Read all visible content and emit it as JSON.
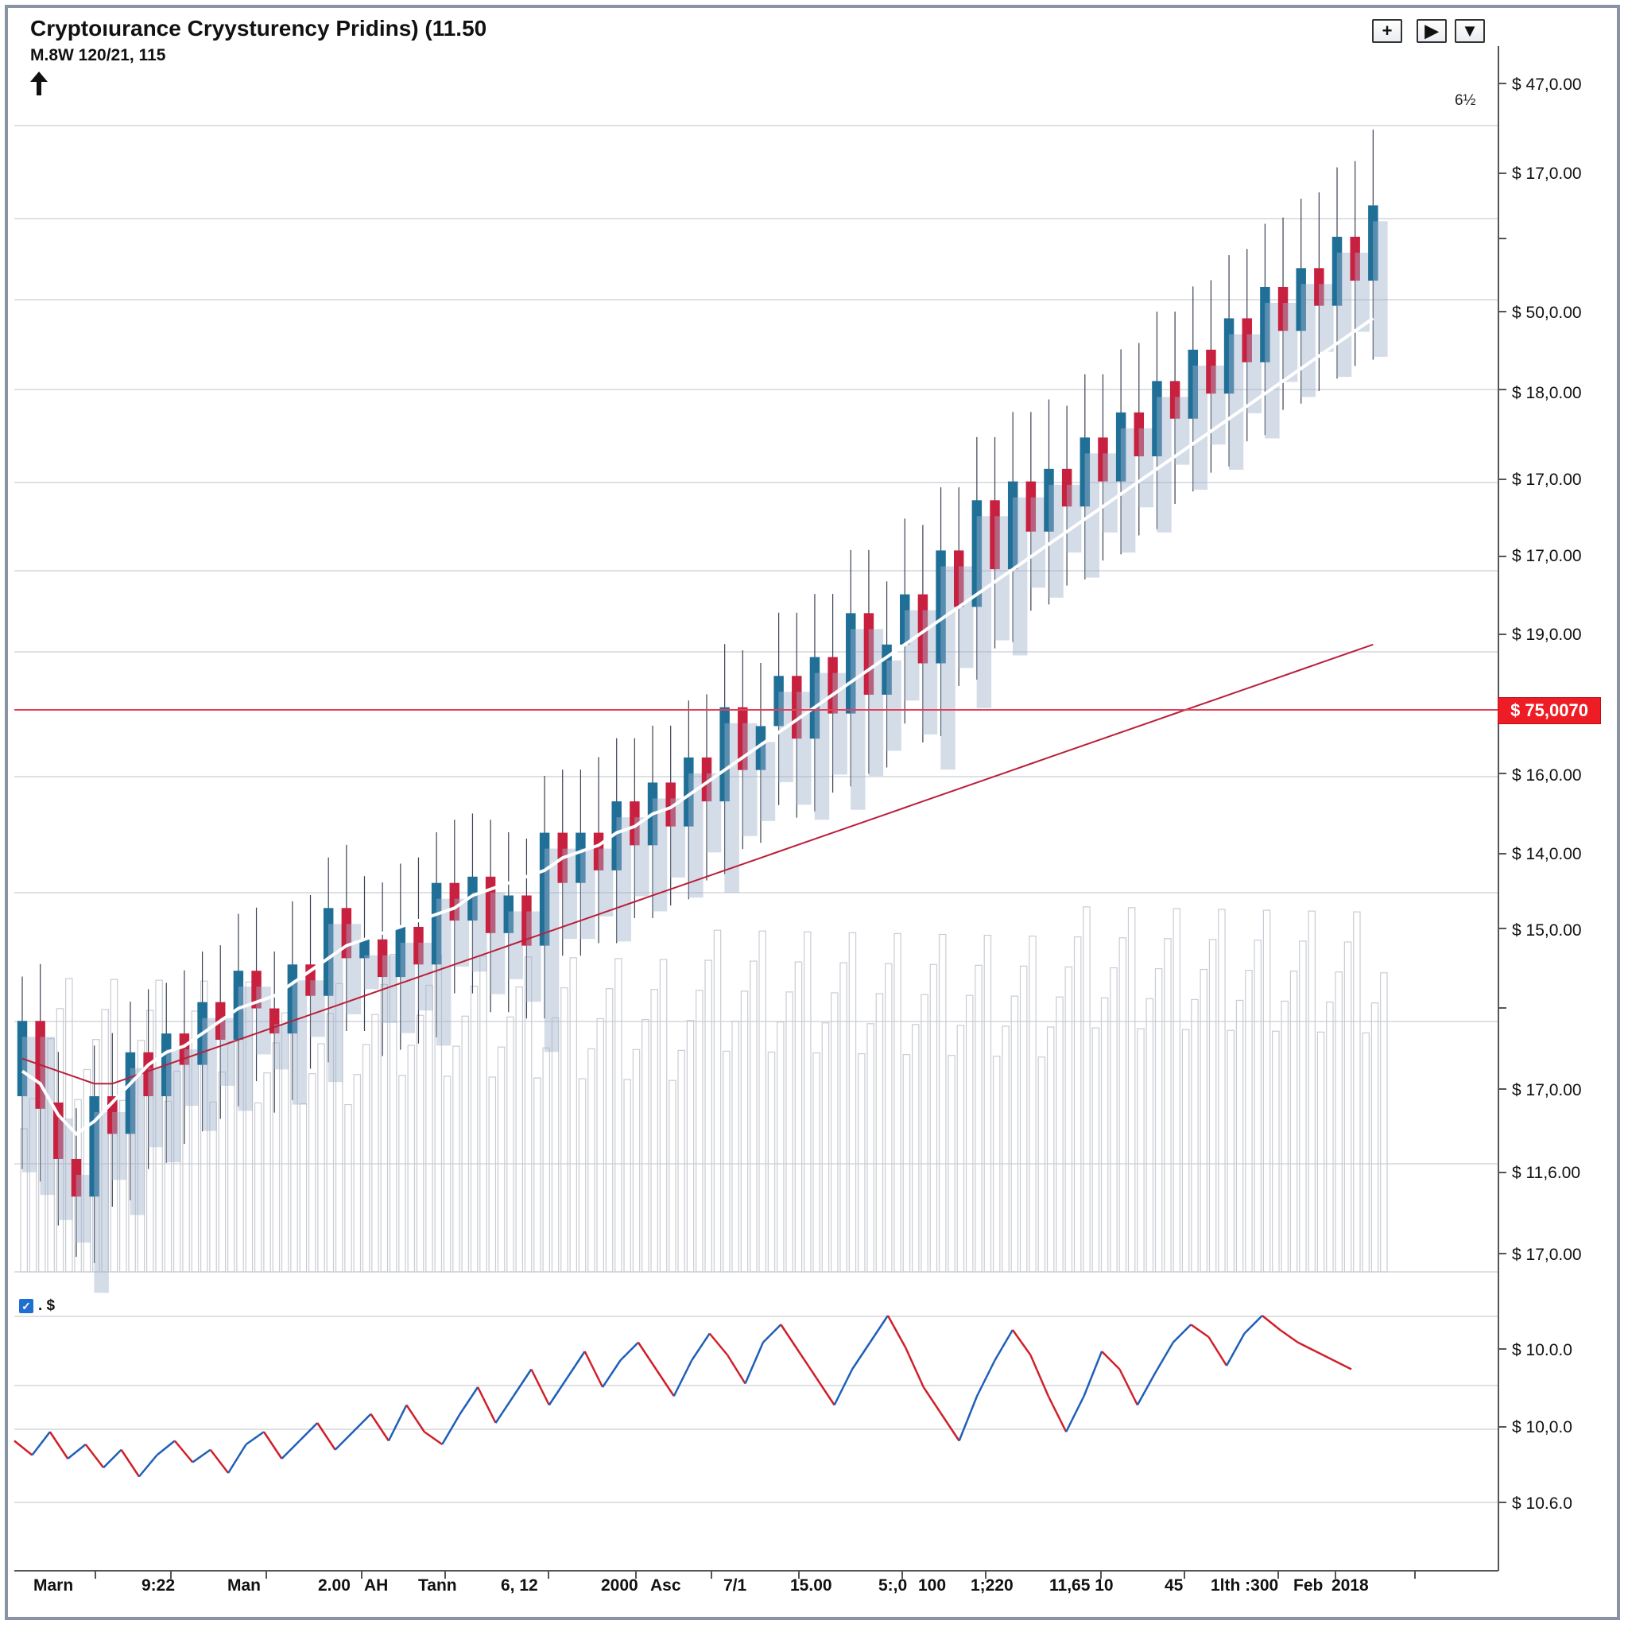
{
  "header": {
    "title": "Cryptoıurance Cryysturency Pridins) (11.50",
    "subtitle": "M.8W 120/21, 115",
    "percent_label": "6½"
  },
  "controls": [
    {
      "name": "zoom-in-button",
      "label": "+"
    },
    {
      "name": "play-button",
      "label": "▶"
    },
    {
      "name": "dropdown-button",
      "label": "▼"
    }
  ],
  "price_tag": "$ 75,0070",
  "legend": {
    "label": ". $"
  },
  "colors": {
    "up": "#1f6f97",
    "down": "#c8203f",
    "ma_white": "#ffffff",
    "ma_red": "#b8203a",
    "price_line": "#e0405a",
    "indicator_up": "#1f5fb8",
    "indicator_down": "#d0202a"
  },
  "chart_data": {
    "type": "candlestick",
    "title": "Cryptoıurance Cryysturency Pridins) (11.50",
    "y_tick_labels": [
      "$ 47,0.00",
      "$ 17,0.00",
      "$ 50,0.00",
      "$ 18,0.00",
      "$ 17,0.00",
      "$ 17,0.00",
      "$ 19,0.00",
      "$ 16,0.00",
      "$ 14,0.00",
      "$ 15,0.00",
      "$ 17,0.00",
      "$ 11,6.00",
      "$ 17,0.00"
    ],
    "indicator_tick_labels": [
      "$ 10.0.0",
      "$ 10,0.0",
      "$ 10.6.0"
    ],
    "x_tick_labels": [
      "Marn",
      "9:22",
      "Man",
      "2.00",
      "AH",
      "Tann",
      "6, 12",
      "2000",
      "Asc",
      "7/1",
      "15.00",
      "5:,0",
      "100",
      "1;220",
      "11,65 10",
      "45",
      "1lth :300",
      "Feb",
      "2018"
    ],
    "ohlc": [
      [
        0.58,
        0.7,
        0.54,
        0.72
      ],
      [
        0.7,
        0.56,
        0.52,
        0.74
      ],
      [
        0.57,
        0.48,
        0.45,
        0.6
      ],
      [
        0.48,
        0.42,
        0.4,
        0.51
      ],
      [
        0.42,
        0.58,
        0.39,
        0.61
      ],
      [
        0.58,
        0.52,
        0.48,
        0.63
      ],
      [
        0.52,
        0.65,
        0.49,
        0.68
      ],
      [
        0.65,
        0.58,
        0.54,
        0.7
      ],
      [
        0.58,
        0.68,
        0.55,
        0.71
      ],
      [
        0.68,
        0.63,
        0.58,
        0.73
      ],
      [
        0.63,
        0.73,
        0.6,
        0.76
      ],
      [
        0.73,
        0.67,
        0.62,
        0.77
      ],
      [
        0.67,
        0.78,
        0.64,
        0.82
      ],
      [
        0.78,
        0.72,
        0.68,
        0.83
      ],
      [
        0.72,
        0.68,
        0.63,
        0.76
      ],
      [
        0.68,
        0.79,
        0.65,
        0.84
      ],
      [
        0.79,
        0.74,
        0.7,
        0.85
      ],
      [
        0.74,
        0.88,
        0.71,
        0.91
      ],
      [
        0.88,
        0.8,
        0.76,
        0.93
      ],
      [
        0.8,
        0.83,
        0.76,
        0.88
      ],
      [
        0.83,
        0.77,
        0.72,
        0.87
      ],
      [
        0.77,
        0.85,
        0.73,
        0.9
      ],
      [
        0.85,
        0.79,
        0.74,
        0.91
      ],
      [
        0.79,
        0.92,
        0.75,
        0.95
      ],
      [
        0.92,
        0.86,
        0.82,
        0.97
      ],
      [
        0.86,
        0.93,
        0.82,
        0.98
      ],
      [
        0.93,
        0.84,
        0.79,
        0.97
      ],
      [
        0.84,
        0.9,
        0.79,
        0.95
      ],
      [
        0.9,
        0.82,
        0.78,
        0.94
      ],
      [
        0.82,
        1.0,
        0.78,
        1.04
      ],
      [
        1.0,
        0.92,
        0.88,
        1.05
      ],
      [
        0.92,
        1.0,
        0.88,
        1.05
      ],
      [
        1.0,
        0.94,
        0.9,
        1.07
      ],
      [
        0.94,
        1.05,
        0.9,
        1.1
      ],
      [
        1.05,
        0.98,
        0.94,
        1.1
      ],
      [
        0.98,
        1.08,
        0.94,
        1.12
      ],
      [
        1.08,
        1.01,
        0.96,
        1.12
      ],
      [
        1.01,
        1.12,
        0.97,
        1.16
      ],
      [
        1.12,
        1.05,
        1.0,
        1.17
      ],
      [
        1.05,
        1.2,
        1.01,
        1.25
      ],
      [
        1.2,
        1.1,
        1.05,
        1.24
      ],
      [
        1.1,
        1.17,
        1.06,
        1.22
      ],
      [
        1.17,
        1.25,
        1.12,
        1.3
      ],
      [
        1.25,
        1.15,
        1.1,
        1.3
      ],
      [
        1.15,
        1.28,
        1.11,
        1.33
      ],
      [
        1.28,
        1.19,
        1.14,
        1.33
      ],
      [
        1.19,
        1.35,
        1.15,
        1.4
      ],
      [
        1.35,
        1.22,
        1.17,
        1.4
      ],
      [
        1.22,
        1.3,
        1.18,
        1.35
      ],
      [
        1.3,
        1.38,
        1.25,
        1.45
      ],
      [
        1.38,
        1.27,
        1.22,
        1.44
      ],
      [
        1.27,
        1.45,
        1.23,
        1.5
      ],
      [
        1.45,
        1.36,
        1.31,
        1.5
      ],
      [
        1.36,
        1.53,
        1.32,
        1.58
      ],
      [
        1.53,
        1.42,
        1.37,
        1.58
      ],
      [
        1.42,
        1.56,
        1.38,
        1.62
      ],
      [
        1.56,
        1.48,
        1.43,
        1.62
      ],
      [
        1.48,
        1.58,
        1.44,
        1.64
      ],
      [
        1.58,
        1.52,
        1.47,
        1.63
      ],
      [
        1.52,
        1.63,
        1.48,
        1.68
      ],
      [
        1.63,
        1.56,
        1.51,
        1.68
      ],
      [
        1.56,
        1.67,
        1.52,
        1.72
      ],
      [
        1.67,
        1.6,
        1.55,
        1.73
      ],
      [
        1.6,
        1.72,
        1.56,
        1.78
      ],
      [
        1.72,
        1.66,
        1.6,
        1.78
      ],
      [
        1.66,
        1.77,
        1.62,
        1.82
      ],
      [
        1.77,
        1.7,
        1.65,
        1.83
      ],
      [
        1.7,
        1.82,
        1.66,
        1.87
      ],
      [
        1.82,
        1.75,
        1.7,
        1.88
      ],
      [
        1.75,
        1.87,
        1.71,
        1.92
      ],
      [
        1.87,
        1.8,
        1.75,
        1.93
      ],
      [
        1.8,
        1.9,
        1.76,
        1.96
      ],
      [
        1.9,
        1.84,
        1.78,
        1.97
      ],
      [
        1.84,
        1.95,
        1.8,
        2.01
      ],
      [
        1.95,
        1.88,
        1.82,
        2.02
      ],
      [
        1.88,
        2.0,
        1.83,
        2.07
      ]
    ],
    "moving_average_white": [
      0.62,
      0.6,
      0.55,
      0.52,
      0.54,
      0.57,
      0.6,
      0.63,
      0.65,
      0.66,
      0.68,
      0.7,
      0.72,
      0.73,
      0.74,
      0.76,
      0.78,
      0.8,
      0.82,
      0.83,
      0.84,
      0.85,
      0.86,
      0.87,
      0.88,
      0.9,
      0.91,
      0.92,
      0.93,
      0.94,
      0.96,
      0.97,
      0.98,
      1.0,
      1.01,
      1.03,
      1.04,
      1.06,
      1.08,
      1.1,
      1.12,
      1.14,
      1.16,
      1.18,
      1.2,
      1.22,
      1.24,
      1.26,
      1.28,
      1.3,
      1.32,
      1.34,
      1.36,
      1.38,
      1.4,
      1.42,
      1.44,
      1.46,
      1.48,
      1.5,
      1.52,
      1.54,
      1.56,
      1.58,
      1.6,
      1.62,
      1.64,
      1.66,
      1.68,
      1.7,
      1.72,
      1.74,
      1.76,
      1.78,
      1.8,
      1.82
    ],
    "moving_average_red": [
      0.64,
      0.63,
      0.62,
      0.61,
      0.6,
      0.6,
      0.61,
      0.62,
      0.63,
      0.64,
      0.65,
      0.66,
      0.67,
      0.68,
      0.69,
      0.7,
      0.71,
      0.72,
      0.73,
      0.74,
      0.75,
      0.76,
      0.77,
      0.78,
      0.79,
      0.8,
      0.81,
      0.82,
      0.83,
      0.84,
      0.85,
      0.86,
      0.87,
      0.88,
      0.89,
      0.9,
      0.91,
      0.92,
      0.93,
      0.94,
      0.95,
      0.96,
      0.97,
      0.98,
      0.99,
      1.0,
      1.01,
      1.02,
      1.03,
      1.04,
      1.05,
      1.06,
      1.07,
      1.08,
      1.09,
      1.1,
      1.11,
      1.12,
      1.13,
      1.14,
      1.15,
      1.16,
      1.17,
      1.18,
      1.19,
      1.2,
      1.21,
      1.22,
      1.23,
      1.24,
      1.25,
      1.26,
      1.27,
      1.28,
      1.29,
      1.3
    ],
    "indicator": [
      0.3,
      0.22,
      0.35,
      0.2,
      0.28,
      0.15,
      0.25,
      0.1,
      0.22,
      0.3,
      0.18,
      0.25,
      0.12,
      0.28,
      0.35,
      0.2,
      0.3,
      0.4,
      0.25,
      0.35,
      0.45,
      0.3,
      0.5,
      0.35,
      0.28,
      0.45,
      0.6,
      0.4,
      0.55,
      0.7,
      0.5,
      0.65,
      0.8,
      0.6,
      0.75,
      0.85,
      0.7,
      0.55,
      0.75,
      0.9,
      0.78,
      0.62,
      0.85,
      0.95,
      0.8,
      0.65,
      0.5,
      0.7,
      0.85,
      1.0,
      0.82,
      0.6,
      0.45,
      0.3,
      0.55,
      0.75,
      0.92,
      0.78,
      0.55,
      0.35,
      0.55,
      0.8,
      0.7,
      0.5,
      0.68,
      0.85,
      0.95,
      0.88,
      0.72,
      0.9,
      1.0,
      0.92,
      0.85,
      0.8,
      0.75,
      0.7
    ],
    "grid": true,
    "legend_position": "bottom-left"
  }
}
